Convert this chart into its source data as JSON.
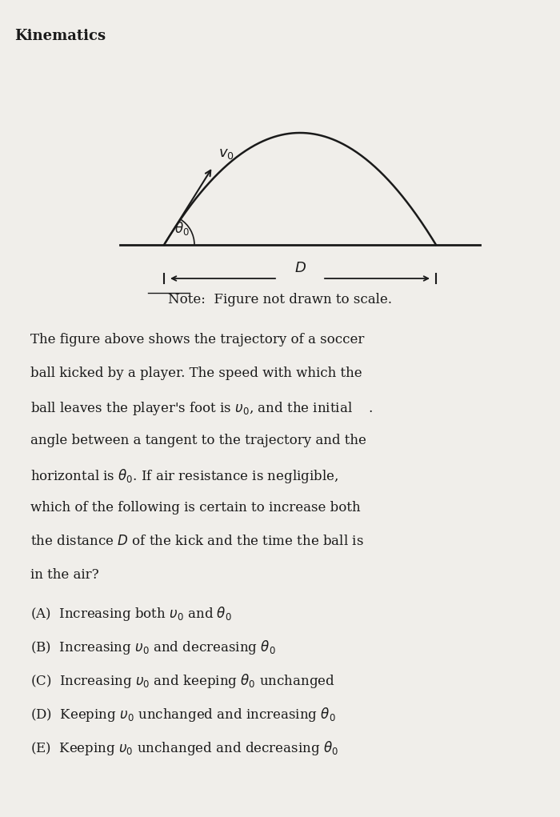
{
  "title": "Kinematics",
  "note_text": "Note:  Figure not drawn to scale.",
  "paragraph": "The figure above shows the trajectory of a soccer ball kicked by a player. The speed with which the ball leaves the player’s foot is υ₀, and the initial angle between a tangent to the trajectory and the horizontal is θ₀. If air resistance is negligible, which of the following is certain to increase both the distance D of the kick and the time the ball is in the air?",
  "options": [
    "(A) Increasing both υ₀ and θ₀",
    "(B) Increasing υ₀ and decreasing θ₀",
    "(C) Increasing υ₀ and keeping θ₀ unchanged",
    "(D) Keeping υ₀ unchanged and increasing θ₀",
    "(E) Keeping υ₀ unchanged and decreasing θ₀"
  ],
  "bg_color": "#f0eeea",
  "text_color": "#1a1a1a",
  "fig_width": 7.0,
  "fig_height": 10.21
}
